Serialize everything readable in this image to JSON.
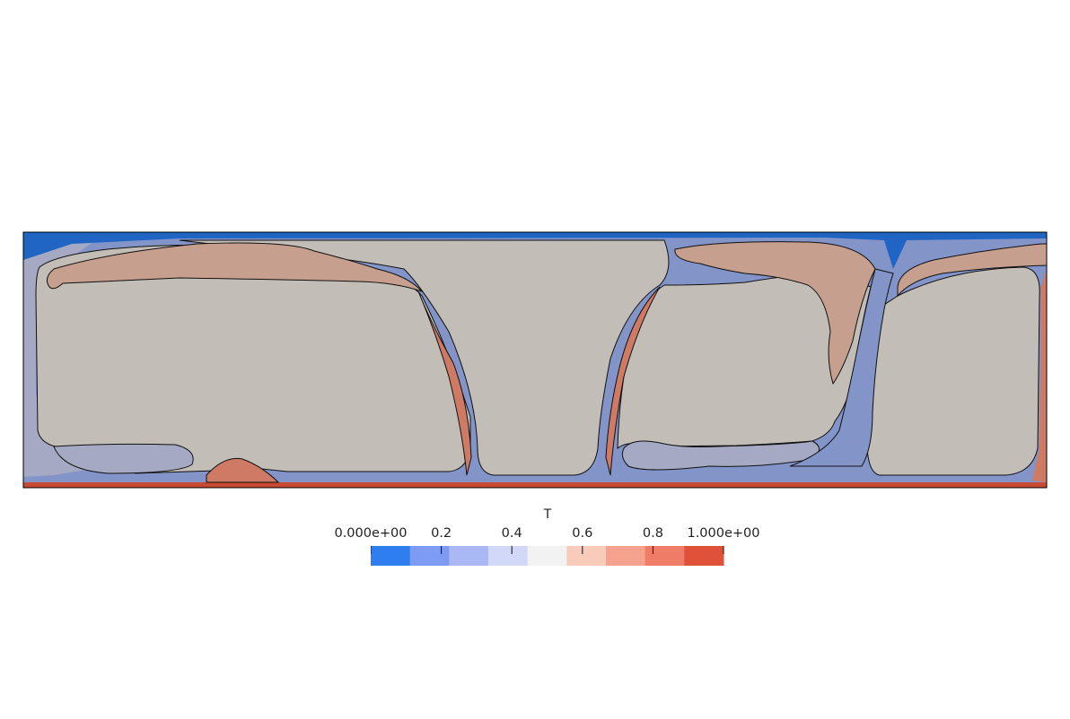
{
  "chart_data": {
    "type": "heatmap",
    "field": "T",
    "colorbar": {
      "title": "T",
      "range": [
        0.0,
        1.0
      ],
      "bins": 9,
      "colors": [
        "#2e7ef0",
        "#7d9bf2",
        "#aab8f6",
        "#d2d8f7",
        "#f2f2f2",
        "#f8cbbb",
        "#f5a28e",
        "#ee7c66",
        "#df5139"
      ],
      "ticks": [
        {
          "value": 0.0,
          "label": "0.000e+00"
        },
        {
          "value": 0.2,
          "label": "0.2"
        },
        {
          "value": 0.4,
          "label": "0.4"
        },
        {
          "value": 0.6,
          "label": "0.6"
        },
        {
          "value": 0.8,
          "label": "0.8"
        },
        {
          "value": 1.0,
          "label": "1.000e+00"
        }
      ]
    },
    "domain_colors": {
      "interior": "#c2bdb7",
      "warm_plume": "#c69f8f",
      "hot_layer": "#c94a32",
      "hot_mid": "#cf7a64",
      "cold_layer": "#2064c4",
      "cool_band": "#8294c8",
      "pale_cool": "#a6a9c3",
      "contour_line": "#111111"
    }
  }
}
